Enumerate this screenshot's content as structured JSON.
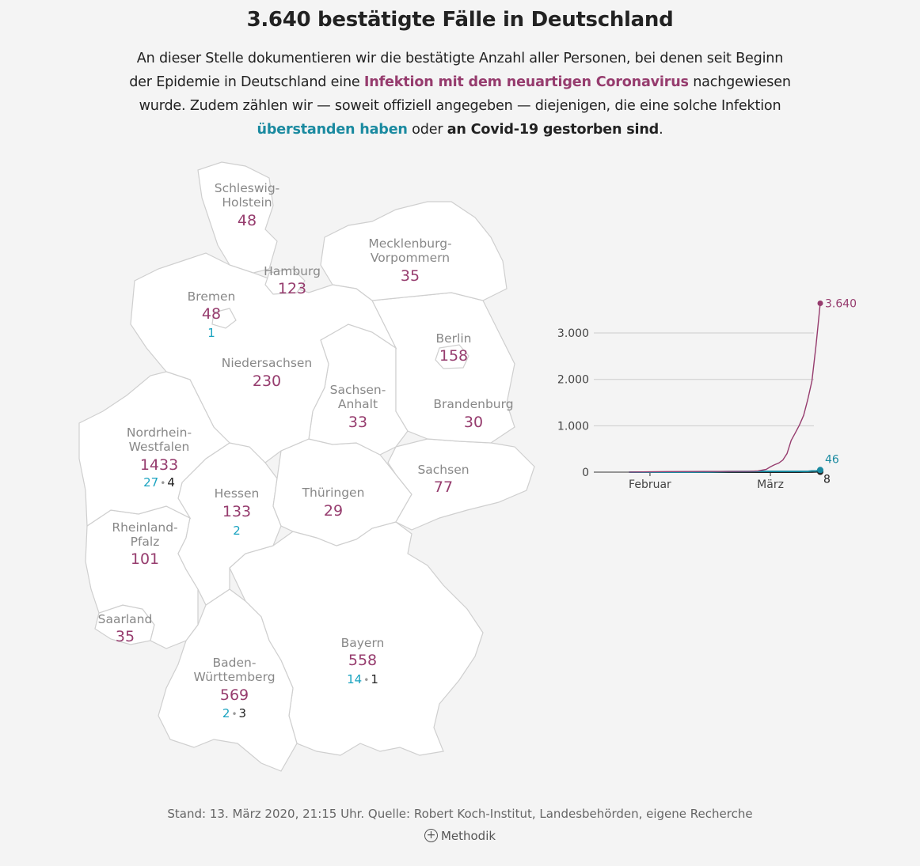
{
  "title": "3.640 bestätigte Fälle in Deutschland",
  "intro": {
    "p1": "An dieser Stelle dokumentieren wir die bestätigte Anzahl aller Personen, bei denen seit Beginn der Epidemie in Deutschland eine ",
    "h1": "Infektion mit dem neuartigen Coronavirus",
    "p2": " nachgewiesen wurde. Zudem zählen wir — soweit offiziell angegeben — diejenigen, die eine solche Infektion ",
    "h2": "überstanden haben",
    "p3": " oder ",
    "h3": "an Covid-19 gestorben sind",
    "p4": "."
  },
  "colors": {
    "infected": "#963c6e",
    "recovered": "#1a8aa0",
    "dead": "#222222"
  },
  "states": {
    "sh": {
      "name1": "Schleswig-",
      "name2": "Holstein",
      "count": "48"
    },
    "hh": {
      "name": "Hamburg",
      "count": "123"
    },
    "mv": {
      "name1": "Mecklenburg-",
      "name2": "Vorpommern",
      "count": "35"
    },
    "hb": {
      "name": "Bremen",
      "count": "48",
      "recovered": "1"
    },
    "be": {
      "name": "Berlin",
      "count": "158"
    },
    "ni": {
      "name": "Niedersachsen",
      "count": "230"
    },
    "st": {
      "name1": "Sachsen-",
      "name2": "Anhalt",
      "count": "33"
    },
    "bb": {
      "name": "Brandenburg",
      "count": "30"
    },
    "nw": {
      "name1": "Nordrhein-",
      "name2": "Westfalen",
      "count": "1433",
      "recovered": "27",
      "sep": "•",
      "dead": "4"
    },
    "sn": {
      "name": "Sachsen",
      "count": "77"
    },
    "he": {
      "name": "Hessen",
      "count": "133",
      "recovered": "2"
    },
    "th": {
      "name": "Thüringen",
      "count": "29"
    },
    "rp": {
      "name1": "Rheinland-",
      "name2": "Pfalz",
      "count": "101"
    },
    "sl": {
      "name": "Saarland",
      "count": "35"
    },
    "by": {
      "name": "Bayern",
      "count": "558",
      "recovered": "14",
      "sep": "•",
      "dead": "1"
    },
    "bw": {
      "name1": "Baden-",
      "name2": "Württemberg",
      "count": "569",
      "recovered": "2",
      "sep": "•",
      "dead": "3"
    }
  },
  "chart_data": {
    "type": "line",
    "x_ticks": [
      "Februar",
      "März"
    ],
    "y_ticks": [
      "0",
      "1.000",
      "2.000",
      "3.000"
    ],
    "ylim": [
      0,
      3700
    ],
    "x": [
      "2020-01-27",
      "2020-02-01",
      "2020-02-05",
      "2020-02-10",
      "2020-02-15",
      "2020-02-20",
      "2020-02-25",
      "2020-02-27",
      "2020-02-29",
      "2020-03-01",
      "2020-03-02",
      "2020-03-03",
      "2020-03-04",
      "2020-03-05",
      "2020-03-06",
      "2020-03-07",
      "2020-03-08",
      "2020-03-09",
      "2020-03-10",
      "2020-03-11",
      "2020-03-12",
      "2020-03-13"
    ],
    "series": [
      {
        "key": "infected",
        "values": [
          1,
          8,
          12,
          14,
          16,
          16,
          18,
          26,
          60,
          115,
          160,
          196,
          262,
          400,
          684,
          847,
          1018,
          1224,
          1567,
          1966,
          2745,
          3640
        ],
        "end_label": "3.640"
      },
      {
        "key": "recovered",
        "values": [
          0,
          0,
          0,
          0,
          2,
          12,
          14,
          16,
          16,
          16,
          16,
          16,
          16,
          16,
          16,
          16,
          18,
          18,
          18,
          25,
          25,
          46
        ],
        "end_label": "46"
      },
      {
        "key": "dead",
        "values": [
          0,
          0,
          0,
          0,
          0,
          0,
          0,
          0,
          0,
          0,
          0,
          0,
          0,
          0,
          0,
          0,
          0,
          2,
          2,
          3,
          6,
          8
        ],
        "end_label": "8"
      }
    ]
  },
  "footer": {
    "source": "Stand: 13. März 2020, 21:15 Uhr. Quelle: Robert Koch-Institut, Landesbehörden, eigene Recherche",
    "method_label": "Methodik",
    "method_icon": "plus-circle-icon"
  }
}
